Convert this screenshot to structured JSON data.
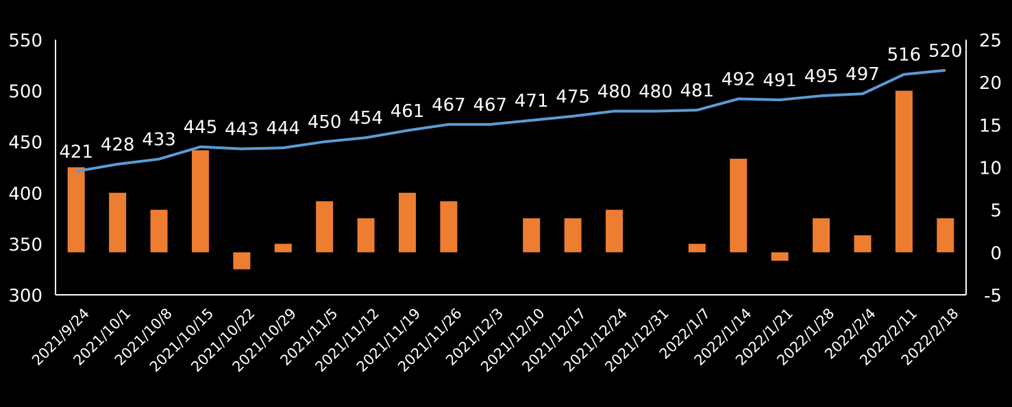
{
  "chart_data": {
    "type": "bar+line",
    "title": "",
    "categories": [
      "2021/9/24",
      "2021/10/1",
      "2021/10/8",
      "2021/10/15",
      "2021/10/22",
      "2021/10/29",
      "2021/11/5",
      "2021/11/12",
      "2021/11/19",
      "2021/11/26",
      "2021/12/3",
      "2021/12/10",
      "2021/12/17",
      "2021/12/24",
      "2021/12/31",
      "2022/1/7",
      "2022/1/14",
      "2022/1/21",
      "2022/1/28",
      "2022/2/4",
      "2022/2/11",
      "2022/2/18"
    ],
    "series": [
      {
        "name": "line",
        "type": "line",
        "axis": "left",
        "color": "#5B9BD5",
        "values": [
          421,
          428,
          433,
          445,
          443,
          444,
          450,
          454,
          461,
          467,
          467,
          471,
          475,
          480,
          480,
          481,
          492,
          491,
          495,
          497,
          516,
          520
        ]
      },
      {
        "name": "bar",
        "type": "bar",
        "axis": "right",
        "color": "#ED7D31",
        "values": [
          10,
          7,
          5,
          12,
          -2,
          1,
          6,
          4,
          7,
          6,
          0,
          4,
          4,
          5,
          0,
          1,
          11,
          -1,
          4,
          2,
          19,
          4
        ]
      }
    ],
    "y_left": {
      "min": 300,
      "max": 550,
      "ticks": [
        300,
        350,
        400,
        450,
        500,
        550
      ]
    },
    "y_right": {
      "min": -5,
      "max": 25,
      "ticks": [
        -5,
        0,
        5,
        10,
        15,
        20,
        25
      ]
    },
    "grid": false,
    "legend": "none"
  }
}
